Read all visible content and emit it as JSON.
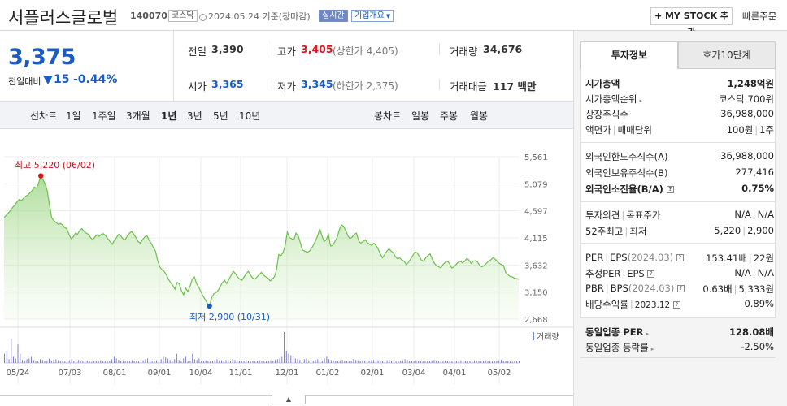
{
  "header": {
    "company_name": "서플러스글로벌",
    "code": "140070",
    "market": "코스닥",
    "date_text": "2024.05.24 기준(장마감)",
    "realtime": "실시간",
    "company_overview": "기업개요",
    "mystock_button": "+ MY STOCK 추가",
    "quick_order": "빠른주문"
  },
  "price": {
    "current": "3,375",
    "change_label": "전일대비",
    "change_value": "15",
    "change_pct": "-0.44%"
  },
  "summary": {
    "prev_label": "전일",
    "prev_value": "3,390",
    "high_label": "고가",
    "high_value": "3,405",
    "upper_limit": "(상한가 4,405)",
    "volume_label": "거래량",
    "volume_value": "34,676",
    "open_label": "시가",
    "open_value": "3,365",
    "low_label": "저가",
    "low_value": "3,345",
    "lower_limit": "(하한가 2,375)",
    "amount_label": "거래대금",
    "amount_value": "117 백만"
  },
  "chart_tabs": {
    "line_label": "선차트",
    "periods": [
      "1일",
      "1주일",
      "3개월",
      "1년",
      "3년",
      "5년",
      "10년"
    ],
    "candle_label": "봉차트",
    "candle_periods": [
      "일봉",
      "주봉",
      "월봉"
    ]
  },
  "chart_data": {
    "type": "area",
    "x_tick_labels": [
      "05/24",
      "07/03",
      "08/01",
      "09/01",
      "10/04",
      "11/01",
      "12/01",
      "01/02",
      "02/01",
      "03/04",
      "04/01",
      "05/02"
    ],
    "y_tick_labels": [
      "5,561",
      "5,079",
      "4,597",
      "4,115",
      "3,632",
      "3,150",
      "2,668"
    ],
    "ylim": [
      2668,
      5561
    ],
    "max_label": "최고 5,220 (06/02)",
    "min_label": "최저 2,900 (10/31)",
    "volume_legend": "거래량",
    "line_color": "#6cc24a",
    "fill_color": "#d9f2c8",
    "series_values": [
      4480,
      4520,
      4560,
      4600,
      4660,
      4700,
      4760,
      4800,
      4780,
      4820,
      4860,
      4880,
      4920,
      4960,
      5020,
      5000,
      5100,
      5220,
      5150,
      5080,
      4950,
      4700,
      4480,
      4420,
      4390,
      4360,
      4370,
      4350,
      4300,
      4280,
      4180,
      4100,
      4130,
      4200,
      4180,
      4250,
      4280,
      4230,
      4200,
      4180,
      4120,
      4080,
      4130,
      4170,
      4140,
      4180,
      4190,
      4150,
      4100,
      4050,
      4000,
      4070,
      4120,
      4180,
      4150,
      4100,
      4080,
      4150,
      4200,
      4230,
      4180,
      4120,
      4050,
      4020,
      4080,
      4130,
      4160,
      4080,
      4020,
      3950,
      3880,
      3720,
      3600,
      3550,
      3520,
      3460,
      3380,
      3320,
      3270,
      3200,
      3320,
      3300,
      3180,
      3100,
      3220,
      3160,
      3250,
      3380,
      3420,
      3300,
      3240,
      3160,
      3080,
      3020,
      2950,
      2900,
      3050,
      3120,
      3140,
      3180,
      3250,
      3320,
      3360,
      3300,
      3380,
      3450,
      3520,
      3480,
      3420,
      3380,
      3360,
      3420,
      3480,
      3520,
      3450,
      3400,
      3380,
      3420,
      3460,
      3500,
      3450,
      3420,
      3400,
      3350,
      3380,
      3420,
      3550,
      3820,
      3800,
      3850,
      3980,
      4220,
      4120,
      4100,
      4080,
      4200,
      4150,
      4030,
      3900,
      3880,
      3860,
      3870,
      3920,
      3980,
      4060,
      4150,
      4280,
      4150,
      4050,
      4080,
      4180,
      3970,
      3980,
      4050,
      4120,
      4250,
      4350,
      4320,
      4250,
      4150,
      4100,
      4130,
      4180,
      4200,
      4060,
      4020,
      4050,
      4080,
      4030,
      4000,
      3980,
      4020,
      3980,
      3920,
      3830,
      3760,
      3820,
      3880,
      3920,
      3880,
      3850,
      3780,
      3740,
      3760,
      3720,
      3700,
      3640,
      3680,
      3740,
      3800,
      3860,
      3850,
      3790,
      3720,
      3700,
      3760,
      3800,
      3830,
      3740,
      3660,
      3620,
      3600,
      3580,
      3640,
      3680,
      3700,
      3660,
      3580,
      3600,
      3640,
      3680,
      3700,
      3670,
      3700,
      3750,
      3720,
      3660,
      3700,
      3710,
      3680,
      3620,
      3600,
      3620,
      3660,
      3700,
      3720,
      3760,
      3740,
      3700,
      3660,
      3640,
      3620,
      3500,
      3460,
      3430,
      3420,
      3400,
      3390,
      3375
    ],
    "volume_values": [
      30,
      40,
      12,
      80,
      20,
      14,
      60,
      30,
      10,
      8,
      12,
      15,
      20,
      10,
      5,
      8,
      12,
      10,
      6,
      9,
      14,
      8,
      10,
      12,
      9,
      6,
      8,
      5,
      7,
      9,
      12,
      8,
      6,
      10,
      7,
      5,
      9,
      8,
      6,
      4,
      7,
      8,
      6,
      9,
      5,
      7,
      6,
      8,
      12,
      20,
      15,
      10,
      8,
      9,
      7,
      6,
      8,
      10,
      6,
      7,
      5,
      8,
      9,
      12,
      15,
      10,
      8,
      6,
      9,
      7,
      12,
      20,
      18,
      14,
      10,
      8,
      12,
      30,
      10,
      8,
      15,
      20,
      6,
      8,
      30,
      12,
      10,
      15,
      8,
      6,
      9,
      7,
      5,
      8,
      10,
      12,
      8,
      9,
      7,
      10,
      6,
      8,
      12,
      10,
      9,
      7,
      6,
      8,
      10,
      7,
      5,
      8,
      6,
      7,
      9,
      8,
      6,
      5,
      7,
      9,
      8,
      10,
      12,
      15,
      20,
      100,
      40,
      30,
      25,
      20,
      15,
      12,
      10,
      8,
      12,
      15,
      9,
      8,
      7,
      10,
      12,
      9,
      8,
      15,
      20,
      12,
      10,
      8,
      7,
      6,
      9,
      10,
      8,
      7,
      6,
      8,
      12,
      10,
      9,
      8,
      7,
      6,
      5,
      8,
      9,
      10,
      12,
      9,
      8,
      7,
      6,
      9,
      10,
      8,
      7,
      6,
      5,
      8,
      9,
      12,
      10,
      8,
      7,
      6,
      9,
      8,
      7,
      6,
      5,
      8,
      7,
      9,
      10,
      8,
      7,
      6,
      5,
      9,
      8,
      7,
      6,
      8,
      7,
      6,
      9,
      8,
      7,
      6,
      5,
      8,
      9,
      8,
      7,
      6,
      8,
      9,
      7,
      6,
      5,
      7,
      8,
      9,
      10,
      8,
      7,
      6,
      5,
      4,
      6,
      8,
      7
    ]
  },
  "side_tabs": [
    "투자정보",
    "호가10단계"
  ],
  "invest": {
    "mcap_label": "시가총액",
    "mcap_value": "1,248억원",
    "rank_label": "시가총액순위",
    "rank_value": "코스닥 700위",
    "shares_label": "상장주식수",
    "shares_value": "36,988,000",
    "par_label": "액면가",
    "unit_label": "매매단위",
    "par_value": "100원",
    "unit_value": "1주",
    "f_limit_label": "외국인한도주식수(A)",
    "f_limit_value": "36,988,000",
    "f_hold_label": "외국인보유주식수(B)",
    "f_hold_value": "277,416",
    "f_ratio_label": "외국인소진율(B/A)",
    "f_ratio_value": "0.75%",
    "opinion_label": "투자의견",
    "target_label": "목표주가",
    "opinion_value": "N/A",
    "target_value": "N/A",
    "w52_high_label": "52주최고",
    "w52_low_label": "최저",
    "w52_high_value": "5,220",
    "w52_low_value": "2,900",
    "per_label": "PER",
    "eps_label": "EPS",
    "per_date": "(2024.03)",
    "per_value": "153.41배",
    "eps_value": "22원",
    "est_per_label": "추정PER",
    "est_eps_label": "EPS",
    "est_per_value": "N/A",
    "est_eps_value": "N/A",
    "pbr_label": "PBR",
    "bps_label": "BPS",
    "pbr_date": "(2024.03)",
    "pbr_value": "0.63배",
    "bps_value": "5,333원",
    "div_label": "배당수익률",
    "div_date": "2023.12",
    "div_value": "0.89%",
    "ind_per_label": "동일업종 PER",
    "ind_per_value": "128.08배",
    "ind_rate_label": "동일업종 등락률",
    "ind_rate_value": "-2.50%"
  }
}
